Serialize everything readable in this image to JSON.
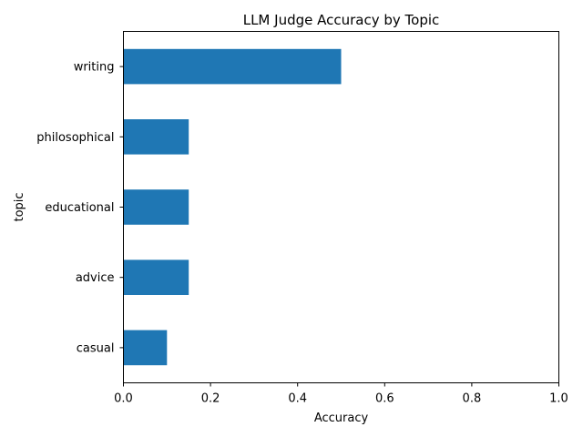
{
  "chart_data": {
    "type": "bar",
    "orientation": "horizontal",
    "title": "LLM Judge Accuracy by Topic",
    "xlabel": "Accuracy",
    "ylabel": "topic",
    "categories": [
      "writing",
      "philosophical",
      "educational",
      "advice",
      "casual"
    ],
    "values": [
      0.5,
      0.15,
      0.15,
      0.15,
      0.1
    ],
    "xlim": [
      0,
      1
    ],
    "xticks": [
      "0.0",
      "0.2",
      "0.4",
      "0.6",
      "0.8",
      "1.0"
    ],
    "grid": false,
    "legend": "none",
    "bar_color": "#1f77b4"
  }
}
